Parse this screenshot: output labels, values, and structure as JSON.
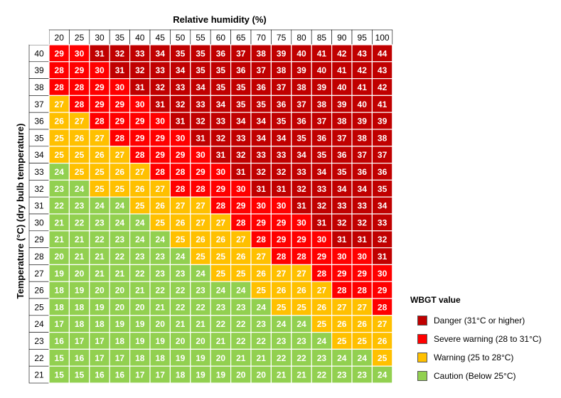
{
  "chart_data": {
    "type": "heatmap",
    "title": "",
    "xlabel": "Relative humidity (%)",
    "ylabel": "Temperature (°C) (dry bulb temperature)",
    "x": [
      20,
      25,
      30,
      35,
      40,
      45,
      50,
      55,
      60,
      65,
      70,
      75,
      80,
      85,
      90,
      95,
      100
    ],
    "y": [
      40,
      39,
      38,
      37,
      36,
      35,
      34,
      33,
      32,
      31,
      30,
      29,
      28,
      27,
      26,
      25,
      24,
      23,
      22,
      21
    ],
    "values": [
      [
        29,
        30,
        31,
        32,
        33,
        34,
        35,
        35,
        36,
        37,
        38,
        39,
        40,
        41,
        42,
        43,
        44
      ],
      [
        28,
        29,
        30,
        31,
        32,
        33,
        34,
        35,
        35,
        36,
        37,
        38,
        39,
        40,
        41,
        42,
        43
      ],
      [
        28,
        28,
        29,
        30,
        31,
        32,
        33,
        34,
        35,
        35,
        36,
        37,
        38,
        39,
        40,
        41,
        42
      ],
      [
        27,
        28,
        29,
        29,
        30,
        31,
        32,
        33,
        34,
        35,
        35,
        36,
        37,
        38,
        39,
        40,
        41
      ],
      [
        26,
        27,
        28,
        29,
        29,
        30,
        31,
        32,
        33,
        34,
        34,
        35,
        36,
        37,
        38,
        39,
        39
      ],
      [
        25,
        26,
        27,
        28,
        29,
        29,
        30,
        31,
        32,
        33,
        34,
        34,
        35,
        36,
        37,
        38,
        38
      ],
      [
        25,
        25,
        26,
        27,
        28,
        29,
        29,
        30,
        31,
        32,
        33,
        33,
        34,
        35,
        36,
        37,
        37
      ],
      [
        24,
        25,
        25,
        26,
        27,
        28,
        28,
        29,
        30,
        31,
        32,
        32,
        33,
        34,
        35,
        36,
        36
      ],
      [
        23,
        24,
        25,
        25,
        26,
        27,
        28,
        28,
        29,
        30,
        31,
        31,
        32,
        33,
        34,
        34,
        35
      ],
      [
        22,
        23,
        24,
        24,
        25,
        26,
        27,
        27,
        28,
        29,
        30,
        30,
        31,
        32,
        33,
        33,
        34
      ],
      [
        21,
        22,
        23,
        24,
        24,
        25,
        26,
        27,
        27,
        28,
        29,
        29,
        30,
        31,
        32,
        32,
        33
      ],
      [
        21,
        21,
        22,
        23,
        24,
        24,
        25,
        26,
        26,
        27,
        28,
        29,
        29,
        30,
        31,
        31,
        32
      ],
      [
        20,
        21,
        21,
        22,
        23,
        23,
        24,
        25,
        25,
        26,
        27,
        28,
        28,
        29,
        30,
        30,
        31
      ],
      [
        19,
        20,
        21,
        21,
        22,
        23,
        23,
        24,
        25,
        25,
        26,
        27,
        27,
        28,
        29,
        29,
        30
      ],
      [
        18,
        19,
        20,
        20,
        21,
        22,
        22,
        23,
        24,
        24,
        25,
        26,
        26,
        27,
        28,
        28,
        29
      ],
      [
        18,
        18,
        19,
        20,
        20,
        21,
        22,
        22,
        23,
        23,
        24,
        25,
        25,
        26,
        27,
        27,
        28
      ],
      [
        17,
        18,
        18,
        19,
        19,
        20,
        21,
        21,
        22,
        22,
        23,
        24,
        24,
        25,
        26,
        26,
        27
      ],
      [
        16,
        17,
        17,
        18,
        19,
        19,
        20,
        20,
        21,
        22,
        22,
        23,
        23,
        24,
        25,
        25,
        26
      ],
      [
        15,
        16,
        17,
        17,
        18,
        18,
        19,
        19,
        20,
        21,
        21,
        22,
        22,
        23,
        24,
        24,
        25
      ],
      [
        15,
        15,
        16,
        16,
        17,
        17,
        18,
        19,
        19,
        20,
        20,
        21,
        21,
        22,
        23,
        23,
        24
      ]
    ],
    "categories_legend": [
      {
        "label": "Danger (31°C or higher)",
        "min": 31,
        "color": "#C00000"
      },
      {
        "label": "Severe warning (28 to 31°C)",
        "min": 28,
        "color": "#FF0000"
      },
      {
        "label": "Warning (25 to 28°C)",
        "min": 25,
        "color": "#FFC000"
      },
      {
        "label": "Caution (Below 25°C)",
        "min": 0,
        "color": "#92D050"
      }
    ],
    "legend_title": "WBGT value",
    "legend_position": "bottom-right",
    "grid": true
  }
}
